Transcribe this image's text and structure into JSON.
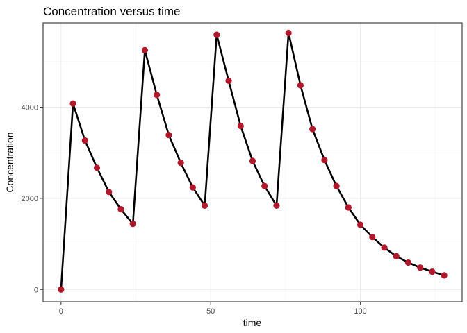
{
  "chart_data": {
    "type": "line",
    "title": "Concentration versus time",
    "xlabel": "time",
    "ylabel": "Concentration",
    "xlim": [
      -6,
      134
    ],
    "ylim": [
      -270,
      5850
    ],
    "x_ticks": [
      0,
      50,
      100
    ],
    "y_ticks": [
      0,
      2000,
      4000
    ],
    "x_tick_labels": [
      "0",
      "50",
      "100"
    ],
    "y_tick_labels": [
      "0",
      "2000",
      "4000"
    ],
    "grid": true,
    "point_color": "#b2182b",
    "line_color": "#000000",
    "x": [
      0,
      4,
      8,
      12,
      16,
      20,
      24,
      28,
      32,
      36,
      40,
      44,
      48,
      52,
      56,
      60,
      64,
      68,
      72,
      76,
      80,
      84,
      88,
      92,
      96,
      100,
      104,
      108,
      112,
      116,
      120,
      124,
      128
    ],
    "y": [
      0,
      4080,
      3270,
      2670,
      2140,
      1760,
      1440,
      5250,
      4270,
      3390,
      2780,
      2240,
      1840,
      5590,
      4580,
      3590,
      2820,
      2270,
      1840,
      5630,
      4480,
      3520,
      2840,
      2270,
      1800,
      1420,
      1150,
      920,
      730,
      590,
      480,
      390,
      310
    ]
  }
}
